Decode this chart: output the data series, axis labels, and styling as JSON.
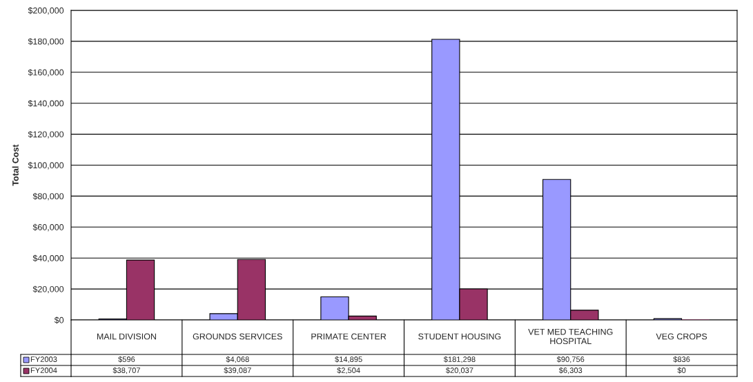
{
  "chart_data": {
    "type": "bar",
    "ylabel": "Total Cost",
    "categories": [
      "MAIL DIVISION",
      "GROUNDS SERVICES",
      "PRIMATE CENTER",
      "STUDENT HOUSING",
      "VET MED TEACHING HOSPITAL",
      "VEG CROPS"
    ],
    "series": [
      {
        "name": "FY2003",
        "color": "#9999ff",
        "values": [
          596,
          4068,
          14895,
          181298,
          90756,
          836
        ],
        "value_labels": [
          "$596",
          "$4,068",
          "$14,895",
          "$181,298",
          "$90,756",
          "$836"
        ]
      },
      {
        "name": "FY2004",
        "color": "#993366",
        "values": [
          38707,
          39087,
          2504,
          20037,
          6303,
          0
        ],
        "value_labels": [
          "$38,707",
          "$39,087",
          "$2,504",
          "$20,037",
          "$6,303",
          "$0"
        ]
      }
    ],
    "ylim": [
      0,
      200000
    ],
    "yticks": [
      {
        "value": 0,
        "label": "$0"
      },
      {
        "value": 20000,
        "label": "$20,000"
      },
      {
        "value": 40000,
        "label": "$40,000"
      },
      {
        "value": 60000,
        "label": "$60,000"
      },
      {
        "value": 80000,
        "label": "$80,000"
      },
      {
        "value": 100000,
        "label": "$100,000"
      },
      {
        "value": 120000,
        "label": "$120,000"
      },
      {
        "value": 140000,
        "label": "$140,000"
      },
      {
        "value": 160000,
        "label": "$160,000"
      },
      {
        "value": 180000,
        "label": "$180,000"
      },
      {
        "value": 200000,
        "label": "$200,000"
      }
    ],
    "grid": "y",
    "legend": "bottom"
  }
}
